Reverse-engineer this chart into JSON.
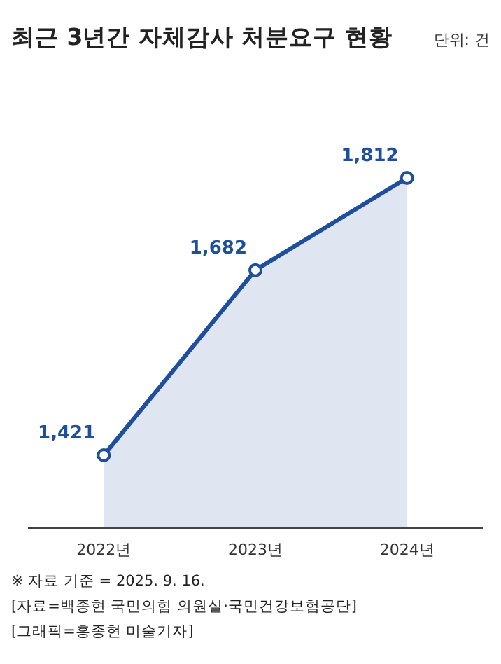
{
  "chart_data": {
    "type": "area",
    "title": "최근 3년간 자체감사 처분요구 현황",
    "subtitle": "단위: 건",
    "categories": [
      "2022년",
      "2023년",
      "2024년"
    ],
    "series": [
      {
        "color": "#1f4e9c",
        "values": [
          1421,
          1682,
          1812
        ],
        "value_labels": [
          "1,421",
          "1,682",
          "1,812"
        ]
      }
    ],
    "marker": "circle",
    "annotations": [
      "※ 자료 기준 = 2025. 9. 16.",
      "[자료=백종현 국민의힘 의원실·국민건강보험공단]",
      "[그래픽=홍종현 미술기자]"
    ]
  }
}
